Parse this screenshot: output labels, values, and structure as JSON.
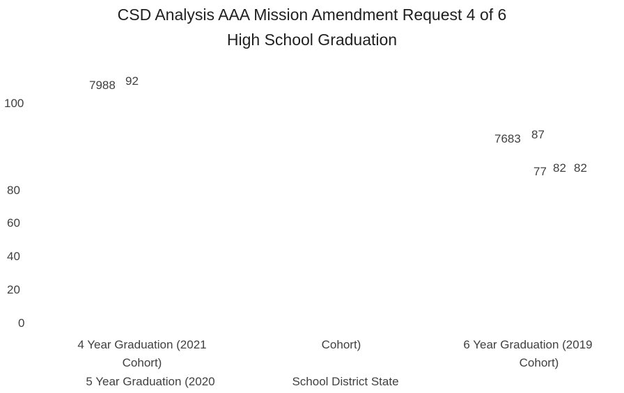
{
  "chart_data": {
    "type": "bar",
    "title": "CSD Analysis AAA Mission Amendment Request 4 of 6",
    "subtitle": "High School Graduation",
    "y_ticks": [
      "100",
      "80",
      "60",
      "40",
      "20",
      "0"
    ],
    "x_labels": {
      "group1_line1": "4 Year Graduation (2021",
      "group1_line2": "Cohort)",
      "group2_line1": "5 Year Graduation (2020",
      "group2_line2": "Cohort)",
      "group3_line1": "6 Year Graduation (2019",
      "group3_line2": "Cohort)"
    },
    "legend": "School District State",
    "data_labels": {
      "g1_a": "7988",
      "g1_b": "92",
      "g3_a": "7683",
      "g3_b": "87",
      "g3_c": "77",
      "g3_d": "82",
      "g3_e": "82"
    }
  }
}
